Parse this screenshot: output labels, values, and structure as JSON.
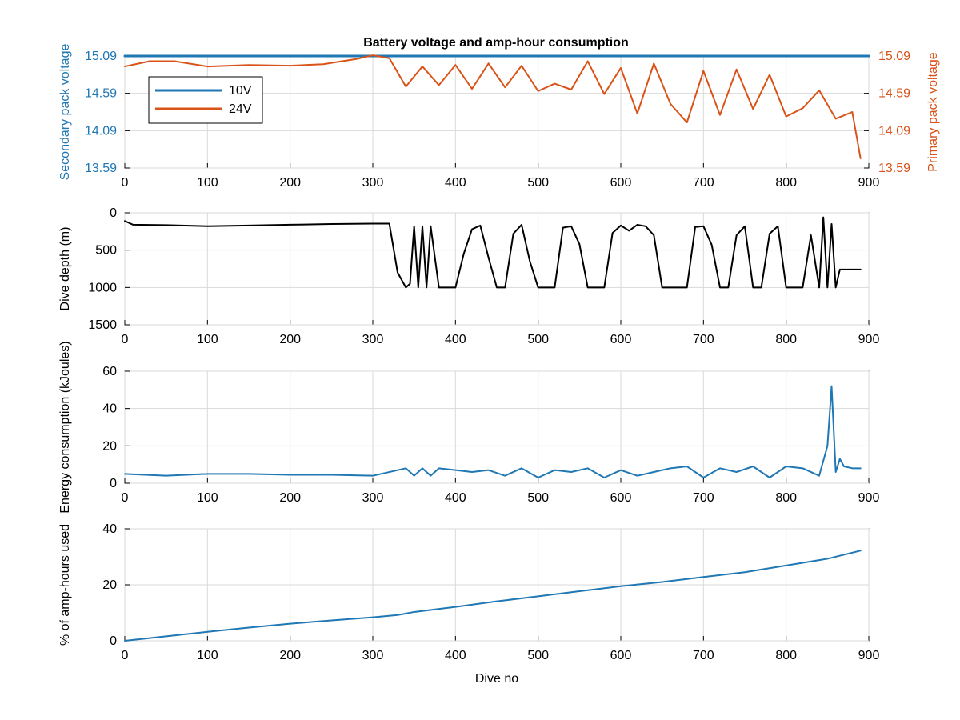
{
  "figure": {
    "title": "Battery voltage and amp-hour consumption"
  },
  "colors": {
    "blue": "#1f77b4",
    "orange": "#d95319",
    "black": "#000000",
    "grid": "#d9d9d9",
    "axis": "#000000",
    "background": "#ffffff"
  },
  "chart_data": [
    {
      "type": "line",
      "title": "Battery voltage and amp-hour consumption",
      "xlabel": "",
      "ylabel": "Secondary pack voltage",
      "y2label": "Primary pack voltage",
      "xlim": [
        0,
        900
      ],
      "ylim": [
        13.59,
        15.09
      ],
      "y2lim": [
        13.59,
        15.09
      ],
      "xticks": [
        0,
        100,
        200,
        300,
        400,
        500,
        600,
        700,
        800,
        900
      ],
      "yticks": [
        13.59,
        14.09,
        14.59,
        15.09
      ],
      "y2ticks": [
        13.59,
        14.09,
        14.59,
        15.09
      ],
      "grid": true,
      "legend": {
        "placement": "top-left",
        "items": [
          "10V",
          "24V"
        ]
      },
      "series": [
        {
          "name": "10V",
          "axis": "left",
          "x": [
            0,
            900
          ],
          "y": [
            15.09,
            15.09
          ]
        },
        {
          "name": "24V",
          "axis": "right",
          "x": [
            0,
            30,
            60,
            100,
            150,
            200,
            240,
            280,
            300,
            320,
            340,
            360,
            380,
            400,
            420,
            440,
            460,
            480,
            500,
            520,
            540,
            560,
            580,
            600,
            620,
            640,
            660,
            680,
            700,
            720,
            740,
            760,
            780,
            800,
            820,
            840,
            860,
            880,
            890
          ],
          "y": [
            14.95,
            15.02,
            15.02,
            14.95,
            14.97,
            14.96,
            14.98,
            15.05,
            15.1,
            15.06,
            14.68,
            14.95,
            14.7,
            14.97,
            14.65,
            14.99,
            14.67,
            14.96,
            14.62,
            14.72,
            14.64,
            15.02,
            14.58,
            14.93,
            14.32,
            14.99,
            14.45,
            14.2,
            14.89,
            14.3,
            14.91,
            14.38,
            14.84,
            14.28,
            14.39,
            14.63,
            14.25,
            14.34,
            13.72
          ]
        }
      ]
    },
    {
      "type": "line",
      "title": "",
      "xlabel": "",
      "ylabel": "Dive depth (m)",
      "xlim": [
        0,
        900
      ],
      "ylim": [
        1500,
        0
      ],
      "xticks": [
        0,
        100,
        200,
        300,
        400,
        500,
        600,
        700,
        800,
        900
      ],
      "yticks": [
        0,
        500,
        1000,
        1500
      ],
      "grid": true,
      "series": [
        {
          "x": [
            0,
            10,
            50,
            100,
            150,
            200,
            250,
            300,
            320,
            330,
            340,
            345,
            350,
            355,
            360,
            365,
            370,
            380,
            390,
            400,
            410,
            420,
            430,
            440,
            450,
            460,
            470,
            480,
            490,
            500,
            510,
            520,
            530,
            540,
            550,
            560,
            570,
            580,
            590,
            600,
            610,
            620,
            630,
            640,
            650,
            660,
            670,
            680,
            690,
            700,
            710,
            720,
            730,
            740,
            750,
            760,
            770,
            780,
            790,
            800,
            810,
            820,
            830,
            840,
            845,
            850,
            855,
            860,
            865,
            870,
            880,
            890
          ],
          "y": [
            110,
            160,
            165,
            180,
            170,
            160,
            150,
            145,
            145,
            800,
            1000,
            950,
            180,
            1000,
            180,
            1000,
            180,
            1000,
            1000,
            1000,
            550,
            220,
            170,
            600,
            1000,
            1000,
            280,
            160,
            650,
            1000,
            1000,
            1000,
            200,
            180,
            420,
            1000,
            1000,
            1000,
            270,
            170,
            240,
            160,
            180,
            300,
            1000,
            1000,
            1000,
            1000,
            190,
            180,
            430,
            1000,
            1000,
            300,
            180,
            1000,
            1000,
            280,
            180,
            1000,
            1000,
            1000,
            300,
            1000,
            60,
            1000,
            150,
            1000,
            760,
            760,
            760,
            760
          ]
        }
      ]
    },
    {
      "type": "line",
      "title": "",
      "xlabel": "",
      "ylabel": "Energy consumption (kJoules)",
      "xlim": [
        0,
        900
      ],
      "ylim": [
        0,
        60
      ],
      "xticks": [
        0,
        100,
        200,
        300,
        400,
        500,
        600,
        700,
        800,
        900
      ],
      "yticks": [
        0,
        20,
        40,
        60
      ],
      "grid": true,
      "series": [
        {
          "x": [
            0,
            50,
            100,
            150,
            200,
            250,
            300,
            330,
            340,
            350,
            360,
            370,
            380,
            400,
            420,
            440,
            460,
            480,
            500,
            520,
            540,
            560,
            580,
            600,
            620,
            640,
            660,
            680,
            700,
            720,
            740,
            760,
            780,
            800,
            820,
            840,
            850,
            855,
            860,
            865,
            870,
            880,
            890
          ],
          "y": [
            5,
            4,
            5,
            5,
            4.5,
            4.5,
            4,
            7,
            8,
            4,
            8,
            4,
            8,
            7,
            6,
            7,
            4,
            8,
            3,
            7,
            6,
            8,
            3,
            7,
            4,
            6,
            8,
            9,
            3,
            8,
            6,
            9,
            3,
            9,
            8,
            4,
            20,
            52,
            6,
            13,
            9,
            8,
            8
          ]
        }
      ]
    },
    {
      "type": "line",
      "title": "",
      "xlabel": "Dive no",
      "ylabel": "% of amp-hours used",
      "xlim": [
        0,
        900
      ],
      "ylim": [
        0,
        40
      ],
      "xticks": [
        0,
        100,
        200,
        300,
        400,
        500,
        600,
        700,
        800,
        900
      ],
      "yticks": [
        0,
        20,
        40
      ],
      "grid": true,
      "series": [
        {
          "x": [
            0,
            50,
            100,
            150,
            200,
            250,
            300,
            330,
            350,
            400,
            450,
            500,
            550,
            600,
            650,
            700,
            750,
            800,
            850,
            890
          ],
          "y": [
            0,
            1.6,
            3.2,
            4.7,
            6.1,
            7.3,
            8.4,
            9.2,
            10.3,
            12.1,
            14.1,
            15.9,
            17.7,
            19.5,
            21.0,
            22.8,
            24.5,
            26.9,
            29.3,
            32.2
          ]
        }
      ]
    }
  ]
}
